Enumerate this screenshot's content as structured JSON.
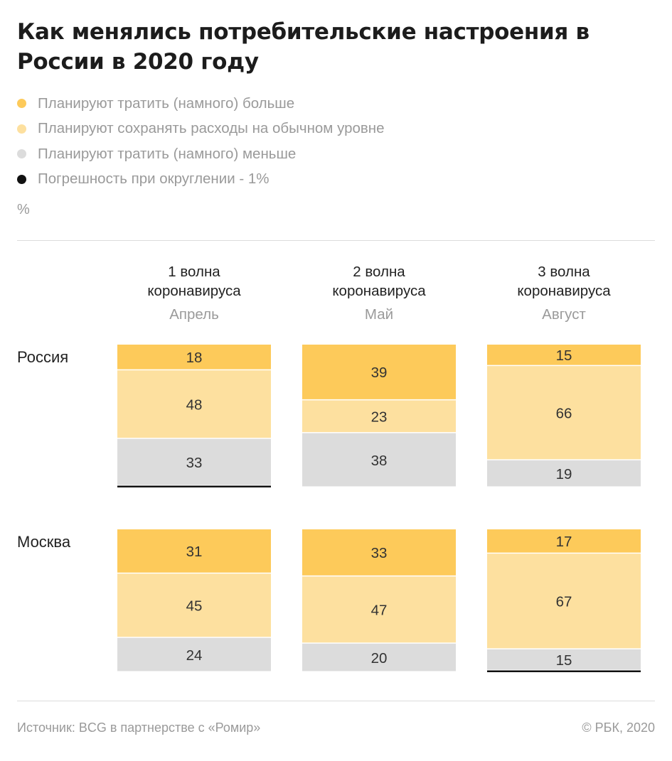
{
  "title": "Как менялись потребительские настроения в России в 2020 году",
  "legend": [
    {
      "label": "Планируют тратить (намного) больше",
      "color": "#fdca5a"
    },
    {
      "label": "Планируют сохранять расходы на обычном уровне",
      "color": "#fde09f"
    },
    {
      "label": "Планируют тратить (намного) меньше",
      "color": "#dcdcdc"
    },
    {
      "label": "Погрешность при округлении - 1%",
      "color": "#111111"
    }
  ],
  "unit": "%",
  "source": "Источник:  BCG в партнерстве с «Ромир»",
  "copyright": "©  РБК, 2020",
  "chart_data": {
    "type": "bar",
    "subtype": "stacked-100-percent",
    "title": "Как менялись потребительские настроения в России в 2020 году",
    "columns": [
      {
        "wave": "1 волна коронавируса",
        "month": "Апрель"
      },
      {
        "wave": "2 волна коронавируса",
        "month": "Май"
      },
      {
        "wave": "3 волна коронавируса",
        "month": "Август"
      }
    ],
    "series_names": [
      "Планируют тратить (намного) больше",
      "Планируют сохранять расходы на обычном уровне",
      "Планируют тратить (намного) меньше"
    ],
    "rows": [
      {
        "name": "Россия",
        "values": [
          [
            18,
            48,
            33
          ],
          [
            39,
            23,
            38
          ],
          [
            15,
            66,
            19
          ]
        ],
        "rounding_error": [
          true,
          false,
          false
        ]
      },
      {
        "name": "Москва",
        "values": [
          [
            31,
            45,
            24
          ],
          [
            33,
            47,
            20
          ],
          [
            17,
            67,
            15
          ]
        ],
        "rounding_error": [
          false,
          false,
          true
        ]
      }
    ],
    "ylim": [
      0,
      100
    ]
  }
}
